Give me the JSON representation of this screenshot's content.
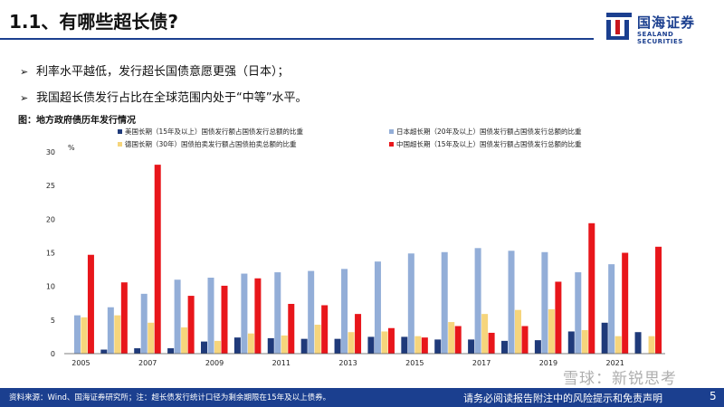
{
  "header": {
    "title": "1.1、有哪些超长债?",
    "logo_cn": "国海证券",
    "logo_en": "SEALAND SECURITIES"
  },
  "bullets": [
    "利率水平越低，发行超长国债意愿更强（日本）；",
    "我国超长债发行占比在全球范围内处于“中等”水平。"
  ],
  "figure_label": "图：地方政府债历年发行情况",
  "footer": {
    "source": "资料来源：Wind、国海证券研究所；注：超长债发行统计口径为剩余期限在15年及以上债券。",
    "disclaimer": "请务必阅读报告附注中的风险提示和免责声明",
    "page": "5",
    "watermark": "雪球：新锐思考"
  },
  "chart_data": {
    "type": "bar",
    "unit_label": "%",
    "ylim": [
      0,
      30
    ],
    "yticks": [
      0,
      5,
      10,
      15,
      20,
      25,
      30
    ],
    "categories": [
      "2005",
      "2006",
      "2007",
      "2008",
      "2009",
      "2010",
      "2011",
      "2012",
      "2013",
      "2014",
      "2015",
      "2016",
      "2017",
      "2018",
      "2019",
      "2020",
      "2021",
      "2022"
    ],
    "xtick_labels": [
      "2005",
      "",
      "2007",
      "",
      "2009",
      "",
      "2011",
      "",
      "2013",
      "",
      "2015",
      "",
      "2017",
      "",
      "2019",
      "",
      "2021",
      ""
    ],
    "legend_placement": "top",
    "grid": false,
    "series": [
      {
        "name": "美国长期（15年及以上）国债发行额占国债发行总额的比重",
        "color": "#1f3a7a",
        "values": [
          0.0,
          0.6,
          0.8,
          0.8,
          1.8,
          2.4,
          2.3,
          2.2,
          2.2,
          2.5,
          2.5,
          2.1,
          2.1,
          1.9,
          2.0,
          3.3,
          4.6,
          3.2
        ]
      },
      {
        "name": "日本超长期（20年及以上）国债发行额占国债发行总额的比重",
        "color": "#93aed8",
        "values": [
          5.7,
          6.9,
          8.9,
          11.0,
          11.3,
          11.9,
          12.1,
          12.3,
          12.6,
          13.7,
          14.9,
          15.1,
          15.7,
          15.3,
          15.1,
          12.1,
          13.3,
          0
        ]
      },
      {
        "name": "德国长期（30年）国债拍卖发行额占国债拍卖总额的比重",
        "color": "#f6d57c",
        "values": [
          5.4,
          5.7,
          4.6,
          3.9,
          1.9,
          3.0,
          2.7,
          4.3,
          3.2,
          3.3,
          2.6,
          4.7,
          5.9,
          6.5,
          6.6,
          3.5,
          2.6,
          2.6
        ]
      },
      {
        "name": "中国超长期（15年及以上）国债发行额占国债发行总额的比重",
        "color": "#e8161b",
        "values": [
          14.7,
          10.6,
          28.1,
          8.6,
          10.1,
          11.2,
          7.4,
          7.2,
          5.9,
          3.8,
          2.4,
          4.1,
          3.1,
          4.1,
          10.7,
          19.4,
          15.0,
          15.9
        ]
      }
    ]
  }
}
